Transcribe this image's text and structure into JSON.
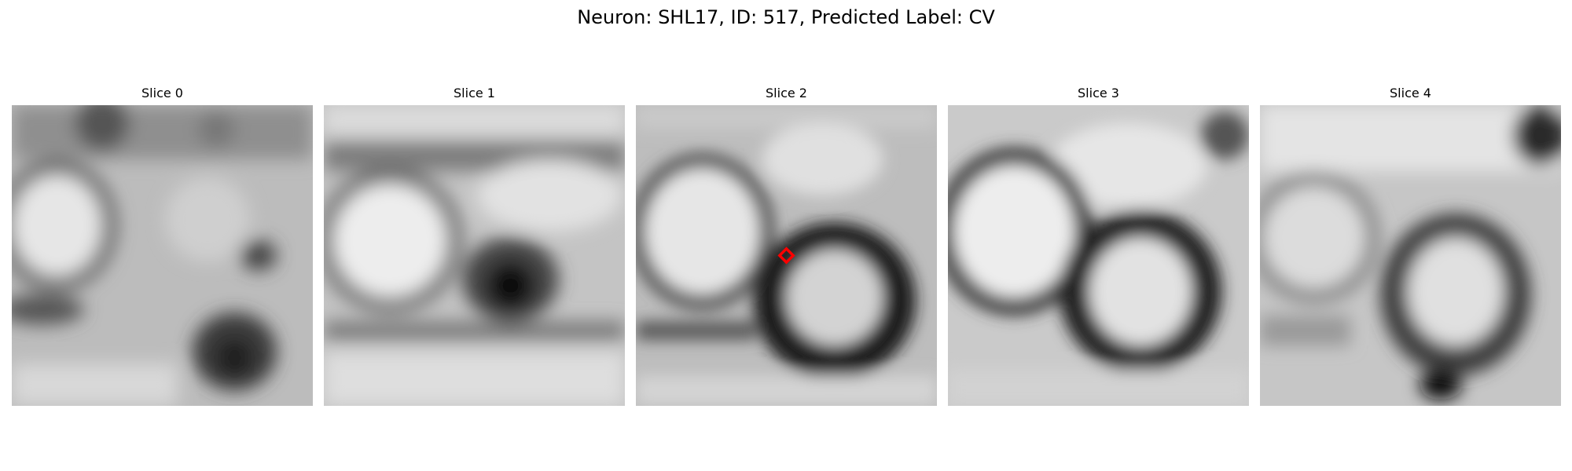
{
  "figure": {
    "title": "Neuron: SHL17, ID: 517, Predicted Label: CV"
  },
  "panels": [
    {
      "label": "Slice 0"
    },
    {
      "label": "Slice 1"
    },
    {
      "label": "Slice 2",
      "marker_color": "#ff0000"
    },
    {
      "label": "Slice 3"
    },
    {
      "label": "Slice 4"
    }
  ],
  "colors": {
    "background": "#ffffff",
    "marker": "#ff0000",
    "colormap": "gray"
  }
}
